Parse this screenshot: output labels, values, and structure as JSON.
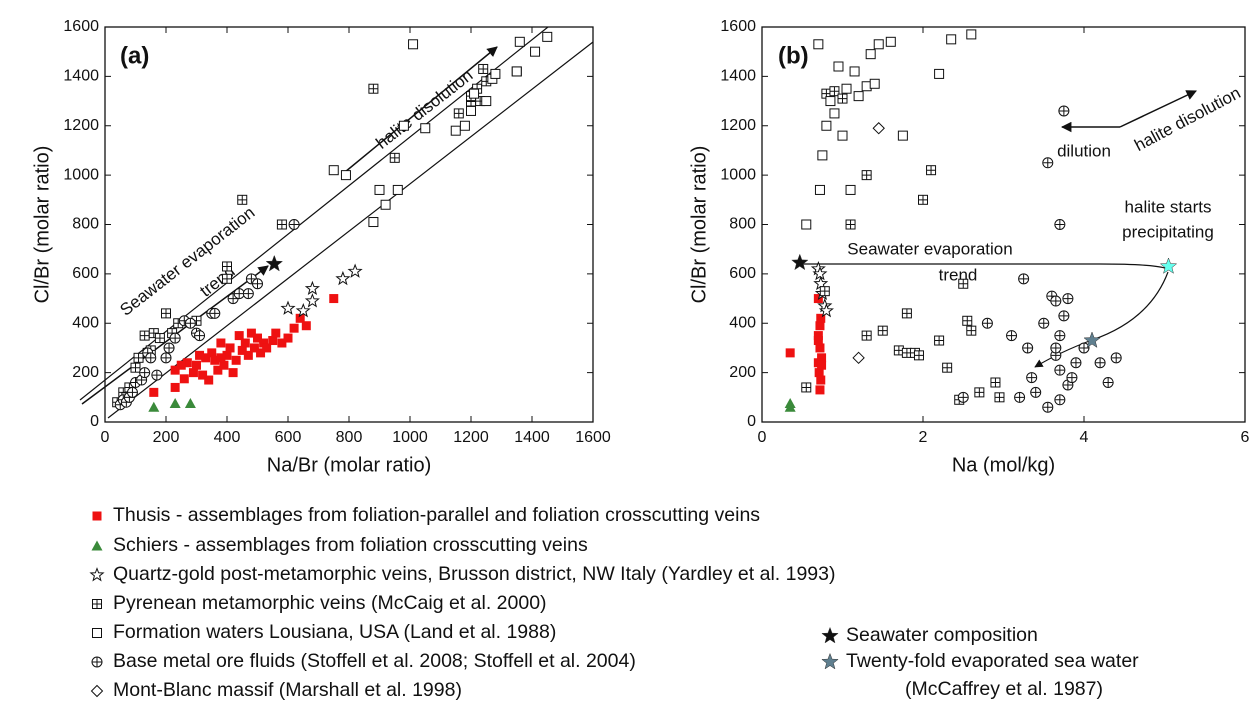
{
  "chart_data": [
    {
      "type": "scatter",
      "label": "(a)",
      "x_label": "Na/Br (molar ratio)",
      "y_label": "Cl/Br (molar ratio)",
      "xlim": [
        0,
        1600
      ],
      "ylim": [
        0,
        1600
      ],
      "xticks": [
        0,
        200,
        400,
        600,
        800,
        1000,
        1200,
        1400,
        1600
      ],
      "yticks": [
        0,
        200,
        400,
        600,
        800,
        1000,
        1200,
        1400,
        1600
      ],
      "annotations": [
        "halite disolution",
        "Seawater evaporation",
        "trend"
      ],
      "series": [
        {
          "marker": "square",
          "color": "#ee1111",
          "x": [
            160,
            230,
            230,
            260,
            270,
            290,
            300,
            320,
            330,
            340,
            350,
            360,
            370,
            380,
            390,
            400,
            410,
            420,
            430,
            440,
            450,
            460,
            470,
            480,
            490,
            500,
            510,
            520,
            530,
            550,
            560,
            580,
            600,
            620,
            640,
            660,
            750,
            250,
            310,
            380
          ],
          "values": [
            120,
            140,
            210,
            175,
            240,
            200,
            230,
            190,
            260,
            170,
            280,
            250,
            210,
            320,
            230,
            270,
            300,
            200,
            250,
            350,
            290,
            320,
            270,
            360,
            300,
            340,
            280,
            320,
            300,
            330,
            360,
            320,
            340,
            380,
            420,
            390,
            500,
            230,
            270,
            260
          ]
        },
        {
          "marker": "triangle",
          "color": "#3a8a3a",
          "x": [
            160,
            230,
            280
          ],
          "values": [
            60,
            75,
            75
          ]
        },
        {
          "marker": "star-open",
          "color": "#111111",
          "x": [
            600,
            650,
            680,
            680,
            780,
            820
          ],
          "values": [
            460,
            450,
            490,
            540,
            580,
            610
          ]
        },
        {
          "marker": "box-plus",
          "color": "#111111",
          "x": [
            40,
            60,
            70,
            80,
            100,
            110,
            130,
            140,
            150,
            160,
            180,
            200,
            220,
            240,
            300,
            400,
            400,
            450,
            580,
            880,
            950,
            1200,
            1220,
            1250,
            1230,
            1200,
            1160,
            1240,
            1350
          ],
          "values": [
            80,
            120,
            100,
            140,
            220,
            260,
            350,
            280,
            290,
            360,
            340,
            440,
            360,
            400,
            410,
            630,
            580,
            900,
            800,
            1350,
            1070,
            1280,
            1350,
            1380,
            1300,
            1320,
            1250,
            1430,
            1420
          ]
        },
        {
          "marker": "square-open",
          "color": "#111111",
          "x": [
            750,
            790,
            880,
            900,
            920,
            960,
            980,
            1010,
            1050,
            1150,
            1180,
            1200,
            1210,
            1250,
            1270,
            1280,
            1350,
            1360,
            1410,
            1450
          ],
          "values": [
            1020,
            1000,
            810,
            940,
            880,
            940,
            1200,
            1530,
            1190,
            1180,
            1200,
            1260,
            1330,
            1300,
            1390,
            1410,
            1420,
            1540,
            1500,
            1560
          ]
        },
        {
          "marker": "circle-plus",
          "color": "#111111",
          "x": [
            50,
            60,
            70,
            80,
            90,
            100,
            120,
            130,
            140,
            150,
            170,
            200,
            210,
            230,
            260,
            280,
            300,
            310,
            350,
            360,
            420,
            440,
            470,
            480,
            500,
            620
          ],
          "values": [
            70,
            90,
            80,
            100,
            120,
            160,
            170,
            200,
            280,
            260,
            190,
            260,
            300,
            340,
            410,
            400,
            360,
            350,
            440,
            440,
            500,
            520,
            520,
            580,
            560,
            800
          ]
        },
        {
          "marker": "star",
          "color": "#111111",
          "x": [
            555
          ],
          "values": [
            640
          ]
        }
      ]
    },
    {
      "type": "scatter",
      "label": "(b)",
      "x_label": "Na (mol/kg)",
      "y_label": "Cl/Br (molar ratio)",
      "xlim": [
        0,
        6
      ],
      "ylim": [
        0,
        1600
      ],
      "xticks": [
        0,
        2,
        4,
        6
      ],
      "yticks": [
        0,
        200,
        400,
        600,
        800,
        1000,
        1200,
        1400,
        1600
      ],
      "annotations": [
        "halite starts",
        "precipitating",
        "Seawater evaporation",
        "trend",
        "dilution",
        "halite disolution"
      ],
      "series": [
        {
          "marker": "square",
          "color": "#ee1111",
          "x": [
            0.35,
            0.7,
            0.72,
            0.73,
            0.7,
            0.72,
            0.74,
            0.7,
            0.71,
            0.73,
            0.72,
            0.74,
            0.7
          ],
          "values": [
            280,
            500,
            390,
            420,
            350,
            300,
            260,
            240,
            200,
            170,
            130,
            230,
            330
          ]
        },
        {
          "marker": "triangle",
          "color": "#3a8a3a",
          "x": [
            0.35,
            0.35
          ],
          "values": [
            60,
            75
          ]
        },
        {
          "marker": "star-open",
          "color": "#111111",
          "x": [
            0.7,
            0.72,
            0.73,
            0.75,
            0.78,
            0.8
          ],
          "values": [
            620,
            600,
            560,
            520,
            470,
            450
          ]
        },
        {
          "marker": "box-plus",
          "color": "#111111",
          "x": [
            0.55,
            0.78,
            0.8,
            0.9,
            1.0,
            1.1,
            1.3,
            1.3,
            1.5,
            1.7,
            1.8,
            1.8,
            1.9,
            1.95,
            2.0,
            2.1,
            2.2,
            2.3,
            2.5,
            2.55,
            2.6,
            2.7,
            2.9,
            2.95,
            2.45
          ],
          "values": [
            140,
            530,
            1330,
            1340,
            1310,
            800,
            1000,
            350,
            370,
            290,
            440,
            280,
            280,
            270,
            900,
            1020,
            330,
            220,
            560,
            410,
            370,
            120,
            160,
            100,
            90
          ]
        },
        {
          "marker": "square-open",
          "color": "#111111",
          "x": [
            0.55,
            0.7,
            0.72,
            0.75,
            0.8,
            0.85,
            0.9,
            0.95,
            1.0,
            1.05,
            1.1,
            1.15,
            1.2,
            1.3,
            1.35,
            1.45,
            1.6,
            1.75,
            2.2,
            2.35,
            2.6,
            1.4
          ],
          "values": [
            800,
            1530,
            940,
            1080,
            1200,
            1300,
            1250,
            1440,
            1160,
            1350,
            940,
            1420,
            1320,
            1360,
            1490,
            1530,
            1540,
            1160,
            1410,
            1550,
            1570,
            1370
          ]
        },
        {
          "marker": "circle-plus",
          "color": "#111111",
          "x": [
            2.5,
            2.8,
            3.1,
            3.25,
            3.3,
            3.35,
            3.4,
            3.5,
            3.55,
            3.6,
            3.65,
            3.65,
            3.7,
            3.7,
            3.75,
            3.7,
            3.75,
            3.8,
            3.8,
            3.85,
            3.9,
            4.0,
            4.2,
            4.3,
            4.4,
            3.55,
            3.7,
            3.2,
            3.65
          ],
          "values": [
            100,
            400,
            350,
            580,
            300,
            180,
            120,
            400,
            1050,
            510,
            490,
            270,
            210,
            350,
            430,
            800,
            1260,
            500,
            150,
            180,
            240,
            300,
            240,
            160,
            260,
            60,
            90,
            100,
            300
          ]
        },
        {
          "marker": "diamond",
          "color": "#111111",
          "x": [
            1.45,
            1.2
          ],
          "values": [
            1190,
            260
          ]
        },
        {
          "marker": "star",
          "color": "#111111",
          "x": [
            0.47
          ],
          "values": [
            645
          ]
        },
        {
          "marker": "star",
          "color": "#5f7f8f",
          "x": [
            4.1
          ],
          "values": [
            330
          ]
        },
        {
          "marker": "star",
          "color": "#66ffee",
          "x": [
            5.05
          ],
          "values": [
            630
          ]
        }
      ]
    }
  ],
  "legend": [
    {
      "label": "Thusis - assemblages from foliation-parallel and foliation crosscutting veins",
      "marker": "square",
      "color": "#ee1111"
    },
    {
      "label": "Schiers - assemblages from foliation crosscutting veins",
      "marker": "triangle",
      "color": "#3a8a3a"
    },
    {
      "label": "Quartz-gold post-metamorphic veins, Brusson district, NW Italy (Yardley et al. 1993)",
      "marker": "star-open",
      "color": "#111111"
    },
    {
      "label": "Pyrenean metamorphic veins (McCaig et al. 2000)",
      "marker": "box-plus",
      "color": "#111111"
    },
    {
      "label": "Formation waters Lousiana, USA (Land et al. 1988)",
      "marker": "square-open",
      "color": "#111111"
    },
    {
      "label": "Base metal ore fluids (Stoffell et al. 2008; Stoffell et al. 2004)",
      "marker": "circle-plus",
      "color": "#111111"
    },
    {
      "label": "Mont-Blanc massif (Marshall et al. 1998)",
      "marker": "diamond",
      "color": "#111111"
    },
    {
      "label": "Seawater composition",
      "marker": "star",
      "color": "#111111"
    },
    {
      "label": "Twenty-fold evaporated sea water",
      "label2": "(McCaffrey et al. 1987)",
      "marker": "star",
      "color": "#5f7f8f"
    }
  ]
}
